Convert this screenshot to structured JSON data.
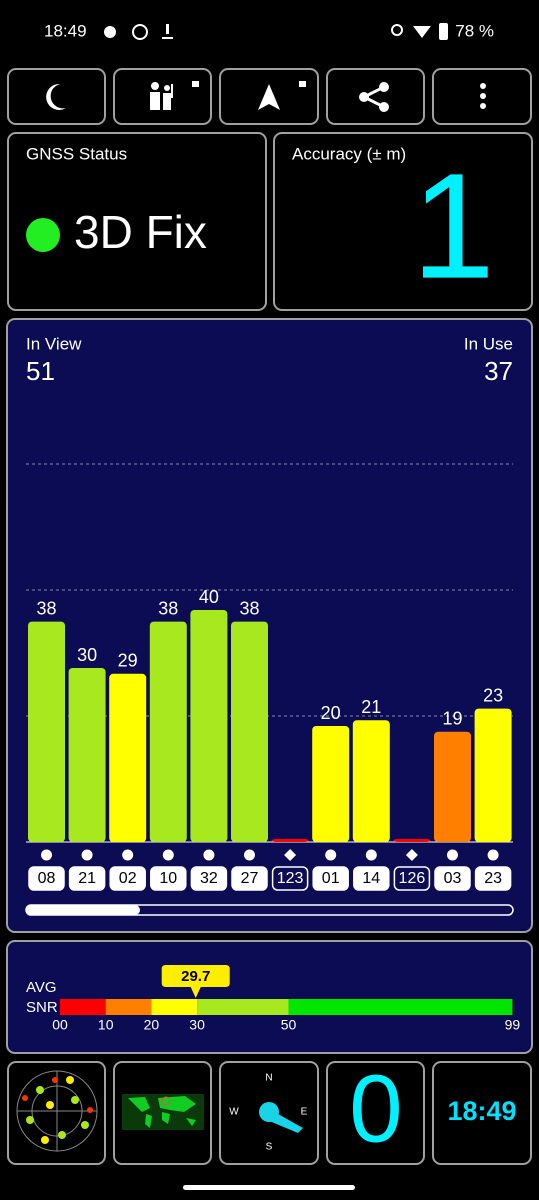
{
  "status_bar": {
    "time": "18:49",
    "battery": "78 %"
  },
  "gnss_status": {
    "title": "GNSS Status",
    "fix": "3D Fix"
  },
  "accuracy": {
    "title": "Accuracy (± m)",
    "value": 1
  },
  "signal": {
    "in_view_label": "In View",
    "in_view": 51,
    "in_use_label": "In Use",
    "in_use": 37,
    "satellites": [
      {
        "id": "08",
        "snr": 38,
        "marker": "circle"
      },
      {
        "id": "21",
        "snr": 30,
        "marker": "circle"
      },
      {
        "id": "02",
        "snr": 29,
        "marker": "circle"
      },
      {
        "id": "10",
        "snr": 38,
        "marker": "circle"
      },
      {
        "id": "32",
        "snr": 40,
        "marker": "circle"
      },
      {
        "id": "27",
        "snr": 38,
        "marker": "circle"
      },
      {
        "id": "123",
        "snr": 0,
        "marker": "diamond"
      },
      {
        "id": "01",
        "snr": 20,
        "marker": "circle"
      },
      {
        "id": "14",
        "snr": 21,
        "marker": "circle"
      },
      {
        "id": "126",
        "snr": 0,
        "marker": "diamond"
      },
      {
        "id": "03",
        "snr": 19,
        "marker": "circle"
      },
      {
        "id": "23",
        "snr": 23,
        "marker": "circle"
      }
    ]
  },
  "avg_snr": {
    "label_1": "AVG",
    "label_2": "SNR",
    "value": 29.7,
    "scale": {
      "ticks": [
        {
          "value": 0,
          "label": "00"
        },
        10,
        20,
        30,
        50,
        99
      ],
      "colors": [
        "#ff0000",
        "#ff8000",
        "#ffff00",
        "#a8e81e",
        "#00e600"
      ]
    }
  },
  "bottom": {
    "count": 0,
    "clock": "18:49",
    "compass": [
      "N",
      "E",
      "S",
      "W"
    ]
  }
}
